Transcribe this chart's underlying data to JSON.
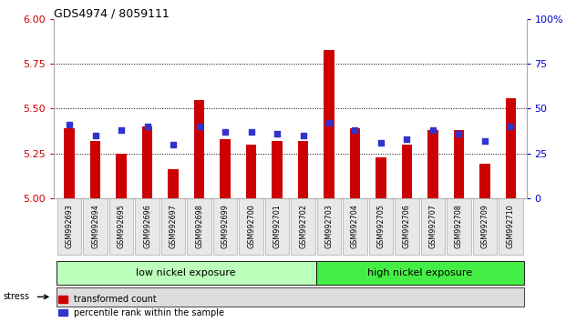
{
  "title": "GDS4974 / 8059111",
  "samples": [
    "GSM992693",
    "GSM992694",
    "GSM992695",
    "GSM992696",
    "GSM992697",
    "GSM992698",
    "GSM992699",
    "GSM992700",
    "GSM992701",
    "GSM992702",
    "GSM992703",
    "GSM992704",
    "GSM992705",
    "GSM992706",
    "GSM992707",
    "GSM992708",
    "GSM992709",
    "GSM992710"
  ],
  "red_values": [
    5.39,
    5.32,
    5.25,
    5.4,
    5.16,
    5.55,
    5.33,
    5.3,
    5.32,
    5.32,
    5.83,
    5.39,
    5.23,
    5.3,
    5.38,
    5.38,
    5.19,
    5.56
  ],
  "blue_values": [
    41,
    35,
    38,
    40,
    30,
    40,
    37,
    37,
    36,
    35,
    42,
    38,
    31,
    33,
    38,
    36,
    32,
    40
  ],
  "ymin": 5.0,
  "ymax": 6.0,
  "yticks": [
    5.0,
    5.25,
    5.5,
    5.75,
    6.0
  ],
  "y2min": 0,
  "y2max": 100,
  "y2ticks": [
    0,
    25,
    50,
    75,
    100
  ],
  "bar_color": "#cc0000",
  "blue_color": "#3333cc",
  "group1_label": "low nickel exposure",
  "group2_label": "high nickel exposure",
  "group1_color": "#bbffbb",
  "group2_color": "#44ee44",
  "stress_label": "stress",
  "legend_red": "transformed count",
  "legend_blue": "percentile rank within the sample",
  "bg_color": "#ffffff",
  "plot_bg": "#ffffff",
  "axis_color_left": "#cc0000",
  "axis_color_right": "#0000cc"
}
